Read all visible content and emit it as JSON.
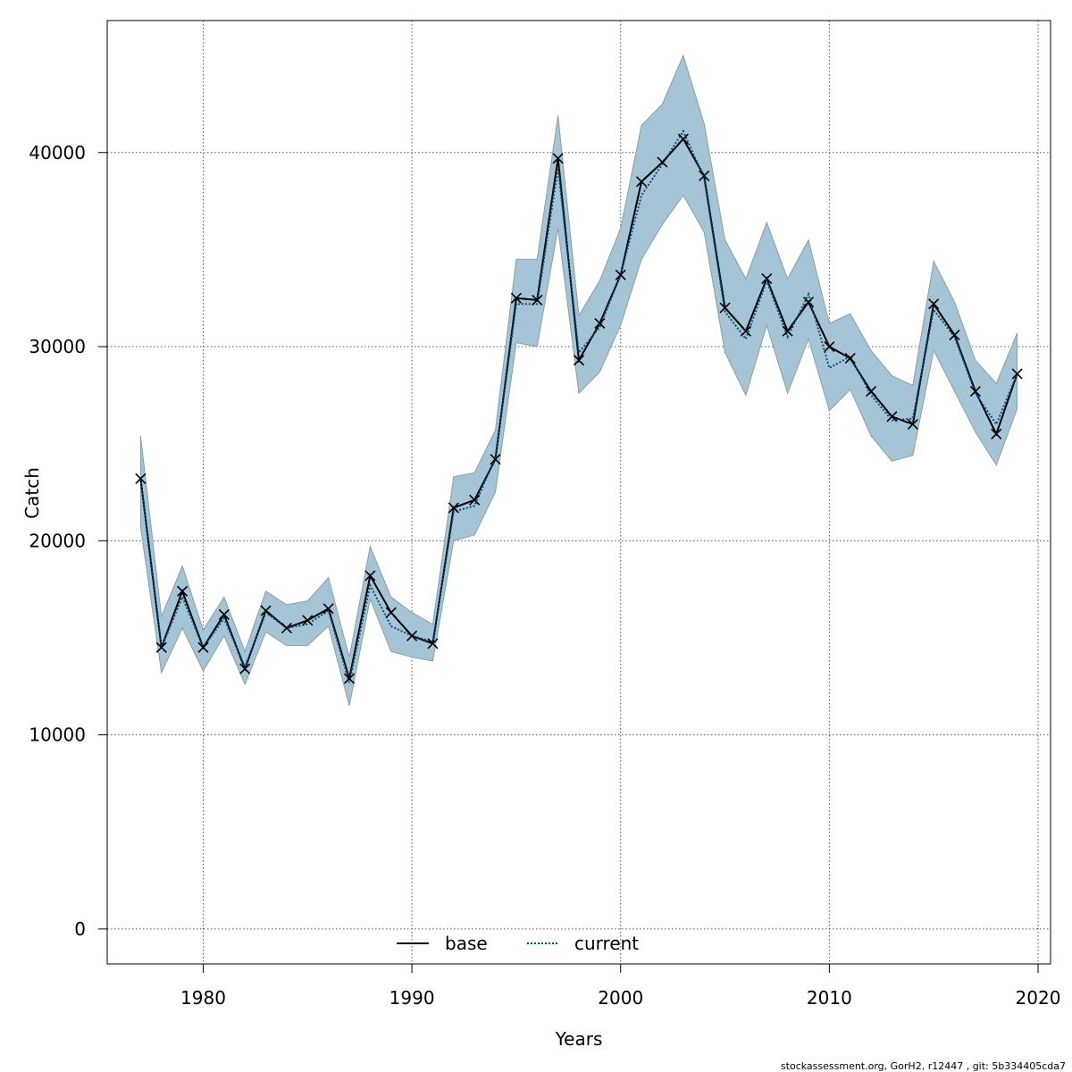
{
  "chart_data": {
    "type": "line",
    "xlabel": "Years",
    "ylabel": "Catch",
    "xlim": [
      1975.4,
      2020.6
    ],
    "ylim": [
      -1800,
      46800
    ],
    "x_ticks": [
      1980,
      1990,
      2000,
      2010,
      2020
    ],
    "y_ticks": [
      0,
      10000,
      20000,
      30000,
      40000
    ],
    "grid": true,
    "legend_position": "bottom-center",
    "x": [
      1977,
      1978,
      1979,
      1980,
      1981,
      1982,
      1983,
      1984,
      1985,
      1986,
      1987,
      1988,
      1989,
      1990,
      1991,
      1992,
      1993,
      1994,
      1995,
      1996,
      1997,
      1998,
      1999,
      2000,
      2001,
      2002,
      2003,
      2004,
      2005,
      2006,
      2007,
      2008,
      2009,
      2010,
      2011,
      2012,
      2013,
      2014,
      2015,
      2016,
      2017,
      2018,
      2019
    ],
    "series": [
      {
        "name": "base",
        "color": "#000000",
        "style": "solid",
        "values": [
          23200,
          14500,
          17400,
          14500,
          16200,
          13400,
          16400,
          15500,
          15900,
          16500,
          12900,
          18200,
          16300,
          15100,
          14700,
          21700,
          22100,
          24200,
          32500,
          32400,
          39700,
          29300,
          31200,
          33700,
          38500,
          39500,
          40700,
          38800,
          32000,
          30800,
          33500,
          30800,
          32300,
          30000,
          29400,
          27700,
          26400,
          26000,
          32200,
          30600,
          27700,
          25500,
          28600
        ]
      },
      {
        "name": "current",
        "color": "#00507a",
        "style": "dotted",
        "values": [
          23200,
          14500,
          17100,
          14500,
          16000,
          13500,
          16300,
          15500,
          15700,
          16400,
          12700,
          17700,
          15600,
          15100,
          14800,
          21500,
          21800,
          24300,
          32200,
          32200,
          39200,
          29700,
          31000,
          33700,
          37800,
          39400,
          41100,
          38700,
          31800,
          30400,
          33400,
          30500,
          32700,
          28900,
          29500,
          27500,
          26200,
          26300,
          31900,
          30500,
          27600,
          26000,
          28600
        ]
      }
    ],
    "ci_band": {
      "color": "#a5c5d7",
      "lower": [
        20700,
        13200,
        15500,
        13300,
        15100,
        12600,
        15300,
        14600,
        14600,
        15600,
        11500,
        17000,
        14300,
        14000,
        13800,
        20000,
        20300,
        22500,
        30200,
        30000,
        36100,
        27600,
        28700,
        31100,
        34500,
        36300,
        37800,
        35900,
        29700,
        27500,
        31100,
        27600,
        30400,
        26700,
        27800,
        25400,
        24100,
        24400,
        29800,
        27700,
        25600,
        23900,
        26800
      ],
      "upper": [
        25400,
        16100,
        18700,
        15400,
        17100,
        14300,
        17400,
        16700,
        16900,
        18100,
        14000,
        19700,
        17100,
        16300,
        15700,
        23300,
        23500,
        25700,
        34500,
        34500,
        41900,
        31600,
        33400,
        36100,
        41400,
        42500,
        45000,
        41500,
        35500,
        33500,
        36400,
        33500,
        35500,
        31200,
        31700,
        29800,
        28500,
        28000,
        34400,
        32300,
        29300,
        28100,
        30700
      ]
    },
    "markers": {
      "symbol": "×",
      "values": [
        23200,
        14500,
        17400,
        14500,
        16200,
        13400,
        16400,
        15500,
        15900,
        16500,
        12900,
        18200,
        16300,
        15100,
        14700,
        21700,
        22100,
        24200,
        32500,
        32400,
        39700,
        29300,
        31200,
        33700,
        38500,
        39500,
        40700,
        38800,
        32000,
        30800,
        33500,
        30800,
        32300,
        30000,
        29400,
        27700,
        26400,
        26000,
        32200,
        30600,
        27700,
        25500,
        28600
      ]
    }
  },
  "footer_text": "stockassessment.org, GorH2, r12447 , git: 5b334405cda7"
}
